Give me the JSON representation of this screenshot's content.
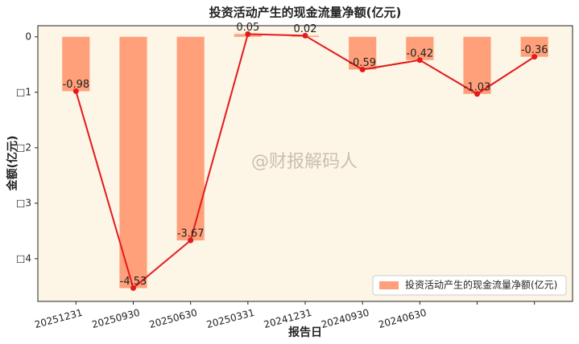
{
  "chart_data": {
    "type": "bar",
    "title": "投资活动产生的现金流量净额(亿元)",
    "x_label": "报告日",
    "y_label": "金额(亿元)",
    "watermark": "@财报解码人",
    "categories": [
      "20251231",
      "20250930",
      "20250630",
      "20250331",
      "20241231",
      "20240930",
      "20240630",
      null,
      null
    ],
    "series": [
      {
        "name": "投资活动产生的现金流量净额(亿元)",
        "color": "#ffa07a",
        "values": [
          -0.98,
          -4.53,
          -3.67,
          0.05,
          0.02,
          -0.59,
          -0.42,
          -1.03,
          -0.36
        ]
      }
    ],
    "line_color": "#e31a1c",
    "ylim": [
      -4.77,
      0.2
    ],
    "yticks": [
      0,
      {
        "value": -1,
        "label": "□1"
      },
      {
        "value": -2,
        "label": "□2"
      },
      {
        "value": -3,
        "label": "□3"
      },
      {
        "value": -4,
        "label": "□4"
      }
    ],
    "legend": "lower right",
    "background": "#fdf5e6"
  }
}
